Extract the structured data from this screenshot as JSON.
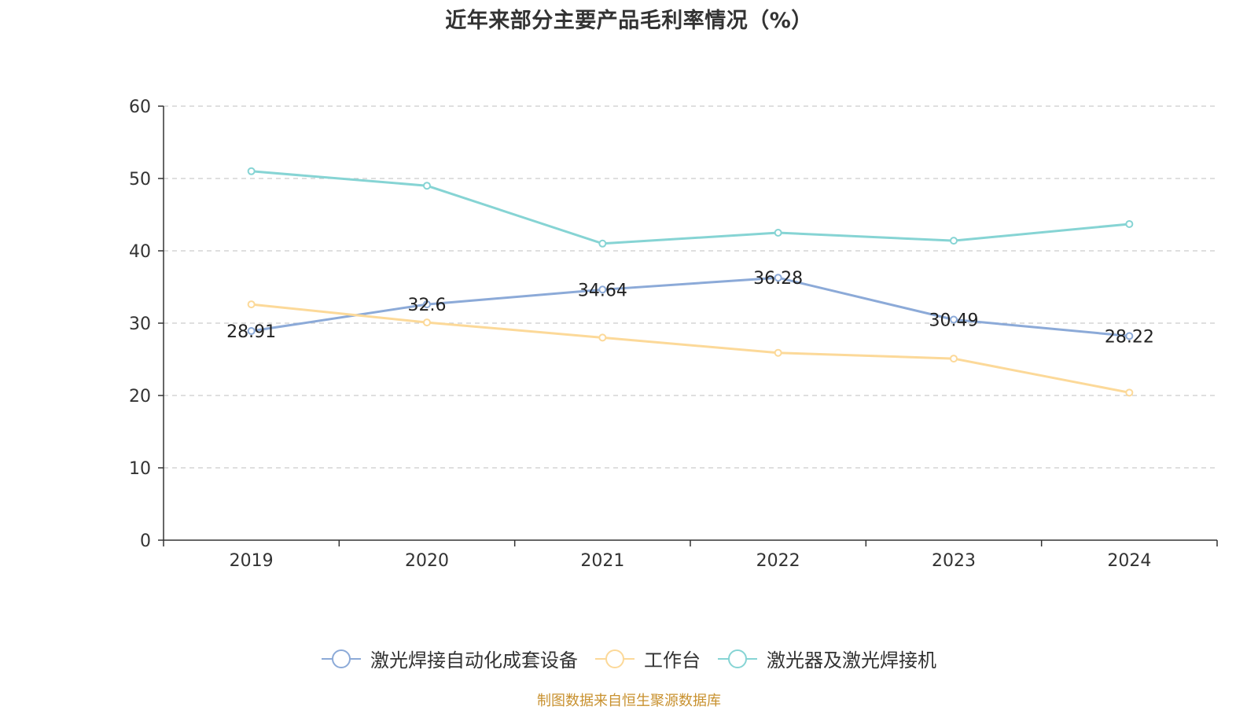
{
  "chart_data": {
    "type": "line",
    "title": "近年来部分主要产品毛利率情况（%）",
    "categories": [
      "2019",
      "2020",
      "2021",
      "2022",
      "2023",
      "2024"
    ],
    "ylim": [
      0,
      60
    ],
    "yticks": [
      0,
      10,
      20,
      30,
      40,
      50,
      60
    ],
    "grid": true,
    "legend_position": "bottom",
    "series": [
      {
        "name": "激光焊接自动化成套设备",
        "color": "#8caad8",
        "values": [
          28.91,
          32.6,
          34.64,
          36.28,
          30.49,
          28.22
        ],
        "data_labels": [
          "28.91",
          "32.6",
          "34.64",
          "36.28",
          "30.49",
          "28.22"
        ]
      },
      {
        "name": "工作台",
        "color": "#fcd999",
        "values": [
          32.6,
          30.1,
          28.0,
          25.9,
          25.1,
          20.4
        ]
      },
      {
        "name": "激光器及激光焊接机",
        "color": "#86d4d4",
        "values": [
          51.0,
          49.0,
          41.0,
          42.5,
          41.4,
          43.7
        ]
      }
    ]
  },
  "footer": {
    "source": "制图数据来自恒生聚源数据库"
  }
}
